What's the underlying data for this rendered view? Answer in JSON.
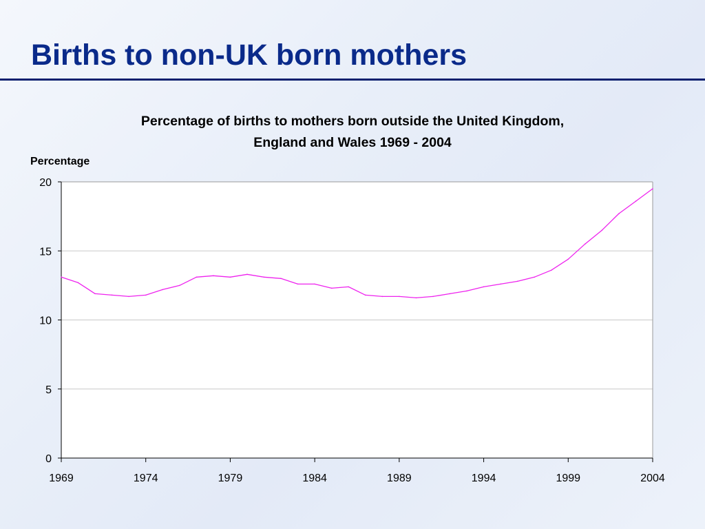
{
  "slide": {
    "title": "Births to non-UK born mothers"
  },
  "chart_data": {
    "type": "line",
    "title_line1": "Percentage of births to mothers born outside the United Kingdom,",
    "title_line2": "England and Wales 1969 - 2004",
    "ylabel": "Percentage",
    "xlabel": "",
    "xlim": [
      1969,
      2004
    ],
    "ylim": [
      0,
      20
    ],
    "xticks": [
      "1969",
      "1974",
      "1979",
      "1984",
      "1989",
      "1994",
      "1999",
      "2004"
    ],
    "yticks": [
      "0",
      "5",
      "10",
      "15",
      "20"
    ],
    "grid": true,
    "legend": "none",
    "line_color": "#ee22ee",
    "x": [
      1969,
      1970,
      1971,
      1972,
      1973,
      1974,
      1975,
      1976,
      1977,
      1978,
      1979,
      1980,
      1981,
      1982,
      1983,
      1984,
      1985,
      1986,
      1987,
      1988,
      1989,
      1990,
      1991,
      1992,
      1993,
      1994,
      1995,
      1996,
      1997,
      1998,
      1999,
      2000,
      2001,
      2002,
      2003,
      2004
    ],
    "y": [
      13.1,
      12.7,
      11.9,
      11.8,
      11.7,
      11.8,
      12.2,
      12.5,
      13.1,
      13.2,
      13.1,
      13.3,
      13.1,
      13.0,
      12.6,
      12.6,
      12.3,
      12.4,
      11.8,
      11.7,
      11.7,
      11.6,
      11.7,
      11.9,
      12.1,
      12.4,
      12.6,
      12.8,
      13.1,
      13.6,
      14.4,
      15.5,
      16.5,
      17.7,
      18.6,
      19.5
    ]
  }
}
